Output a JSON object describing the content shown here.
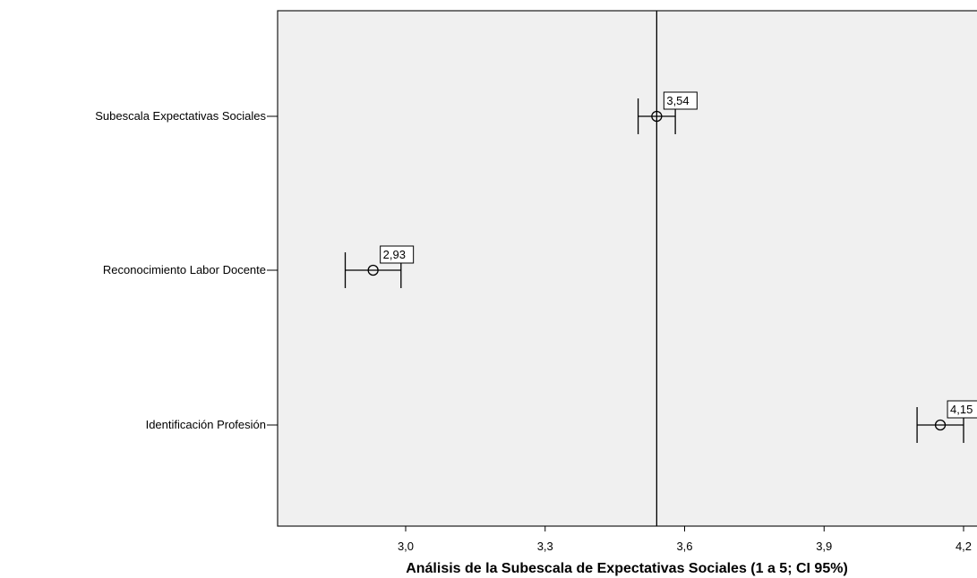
{
  "chart_data": {
    "type": "scatter",
    "subtype": "error-bar (mean with 95% CI)",
    "orientation": "horizontal",
    "categories": [
      "Subescala Expectativas Sociales",
      "Reconocimiento Labor Docente",
      "Identificación Profesión"
    ],
    "series": [
      {
        "means": [
          3.54,
          2.93,
          4.15
        ],
        "ci_low": [
          3.5,
          2.87,
          4.1
        ],
        "ci_high": [
          3.58,
          2.99,
          4.2
        ],
        "data_labels": [
          "3,54",
          "2,93",
          "4,15"
        ]
      }
    ],
    "reference_line": 3.54,
    "xlabel": "Análisis de la Subescala de Expectativas Sociales (1 a 5; CI 95%)",
    "xticks": [
      3.0,
      3.3,
      3.6,
      3.9,
      4.2
    ],
    "xtick_labels": [
      "3,0",
      "3,3",
      "3,6",
      "3,9",
      "4,2"
    ],
    "xlim": [
      2.74,
      4.21
    ],
    "grid": false,
    "legend": "none",
    "background_color": "#f0f0f0"
  }
}
